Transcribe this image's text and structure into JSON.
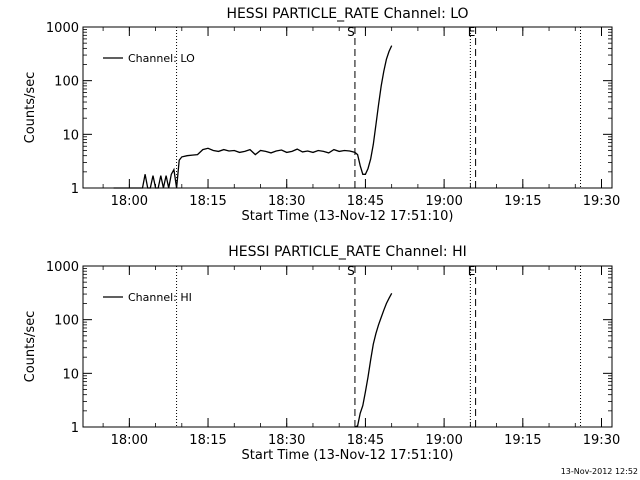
{
  "footer": {
    "timestamp": "13-Nov-2012 12:52"
  },
  "chart_data": [
    {
      "type": "line",
      "title": "HESSI PARTICLE_RATE Channel: LO",
      "xlabel": "Start Time (13-Nov-12 17:51:10)",
      "ylabel": "Counts/sec",
      "xlim": [
        "17:51:10",
        "19:32:00"
      ],
      "ylim": [
        1,
        1000
      ],
      "yscale": "log",
      "x_ticks": [
        "18:00",
        "18:15",
        "18:30",
        "18:45",
        "19:00",
        "19:15",
        "19:30"
      ],
      "y_ticks": [
        "1",
        "10",
        "100",
        "1000"
      ],
      "legend": {
        "position": "top-left",
        "entries": [
          "Channel: LO"
        ]
      },
      "markers": [
        {
          "label": "S",
          "time": "18:43:00",
          "style": "dashed"
        },
        {
          "label": "E",
          "time": "19:06:00",
          "style": "dashed"
        }
      ],
      "vlines_dotted": [
        "18:09:00",
        "19:05:00",
        "19:26:00"
      ],
      "series": [
        {
          "name": "Channel: LO",
          "x": [
            "17:57:00",
            "17:57:30",
            "17:58:00",
            "17:58:30",
            "17:59:00",
            "17:59:30",
            "18:00:00",
            "18:00:30",
            "18:01:00",
            "18:01:30",
            "18:02:00",
            "18:02:30",
            "18:03:00",
            "18:03:30",
            "18:04:00",
            "18:04:30",
            "18:05:00",
            "18:05:30",
            "18:06:00",
            "18:06:30",
            "18:07:00",
            "18:07:30",
            "18:08:00",
            "18:08:30",
            "18:09:00",
            "18:09:30",
            "18:10:00",
            "18:11:00",
            "18:12:00",
            "18:13:00",
            "18:14:00",
            "18:15:00",
            "18:16:00",
            "18:17:00",
            "18:18:00",
            "18:19:00",
            "18:20:00",
            "18:21:00",
            "18:22:00",
            "18:23:00",
            "18:24:00",
            "18:25:00",
            "18:26:00",
            "18:27:00",
            "18:28:00",
            "18:29:00",
            "18:30:00",
            "18:31:00",
            "18:32:00",
            "18:33:00",
            "18:34:00",
            "18:35:00",
            "18:36:00",
            "18:37:00",
            "18:38:00",
            "18:39:00",
            "18:40:00",
            "18:41:00",
            "18:42:00",
            "18:43:00",
            "18:43:30",
            "18:44:00",
            "18:44:30",
            "18:45:00",
            "18:45:30",
            "18:46:00",
            "18:46:30",
            "18:47:00",
            "18:47:30",
            "18:48:00",
            "18:48:30",
            "18:49:00",
            "18:49:30",
            "18:50:00"
          ],
          "values": [
            1,
            1,
            1,
            1,
            1,
            1,
            1,
            1,
            1,
            1,
            1,
            1,
            1.8,
            1,
            1,
            1.7,
            1,
            1,
            1.7,
            1,
            1.7,
            1,
            1.8,
            2.2,
            1,
            3.3,
            3.8,
            4,
            4.1,
            4.2,
            5.2,
            5.5,
            5,
            4.8,
            5.2,
            4.9,
            5,
            4.6,
            4.8,
            5.2,
            4.2,
            5,
            4.8,
            4.5,
            4.9,
            5.1,
            4.6,
            4.8,
            5.3,
            4.7,
            4.9,
            4.6,
            5,
            4.8,
            4.5,
            5.2,
            4.8,
            5,
            4.9,
            4.6,
            4.2,
            2.6,
            1.8,
            1.8,
            2.3,
            3.5,
            6.5,
            15,
            35,
            80,
            150,
            250,
            350,
            450
          ]
        }
      ]
    },
    {
      "type": "line",
      "title": "HESSI PARTICLE_RATE Channel: HI",
      "xlabel": "Start Time (13-Nov-12 17:51:10)",
      "ylabel": "Counts/sec",
      "xlim": [
        "17:51:10",
        "19:32:00"
      ],
      "ylim": [
        1,
        1000
      ],
      "yscale": "log",
      "x_ticks": [
        "18:00",
        "18:15",
        "18:30",
        "18:45",
        "19:00",
        "19:15",
        "19:30"
      ],
      "y_ticks": [
        "1",
        "10",
        "100",
        "1000"
      ],
      "legend": {
        "position": "top-left",
        "entries": [
          "Channel: HI"
        ]
      },
      "markers": [
        {
          "label": "S",
          "time": "18:43:00",
          "style": "dashed"
        },
        {
          "label": "E",
          "time": "19:06:00",
          "style": "dashed"
        }
      ],
      "vlines_dotted": [
        "18:09:00",
        "19:05:00",
        "19:26:00"
      ],
      "series": [
        {
          "name": "Channel: HI",
          "x": [
            "18:43:00",
            "18:43:30",
            "18:44:00",
            "18:44:30",
            "18:45:00",
            "18:45:30",
            "18:46:00",
            "18:46:30",
            "18:47:00",
            "18:47:30",
            "18:48:00",
            "18:48:30",
            "18:49:00",
            "18:49:30",
            "18:50:00"
          ],
          "values": [
            1,
            1.05,
            1.8,
            2.5,
            4.5,
            8.5,
            18,
            35,
            55,
            80,
            110,
            150,
            200,
            250,
            310
          ]
        }
      ]
    }
  ]
}
